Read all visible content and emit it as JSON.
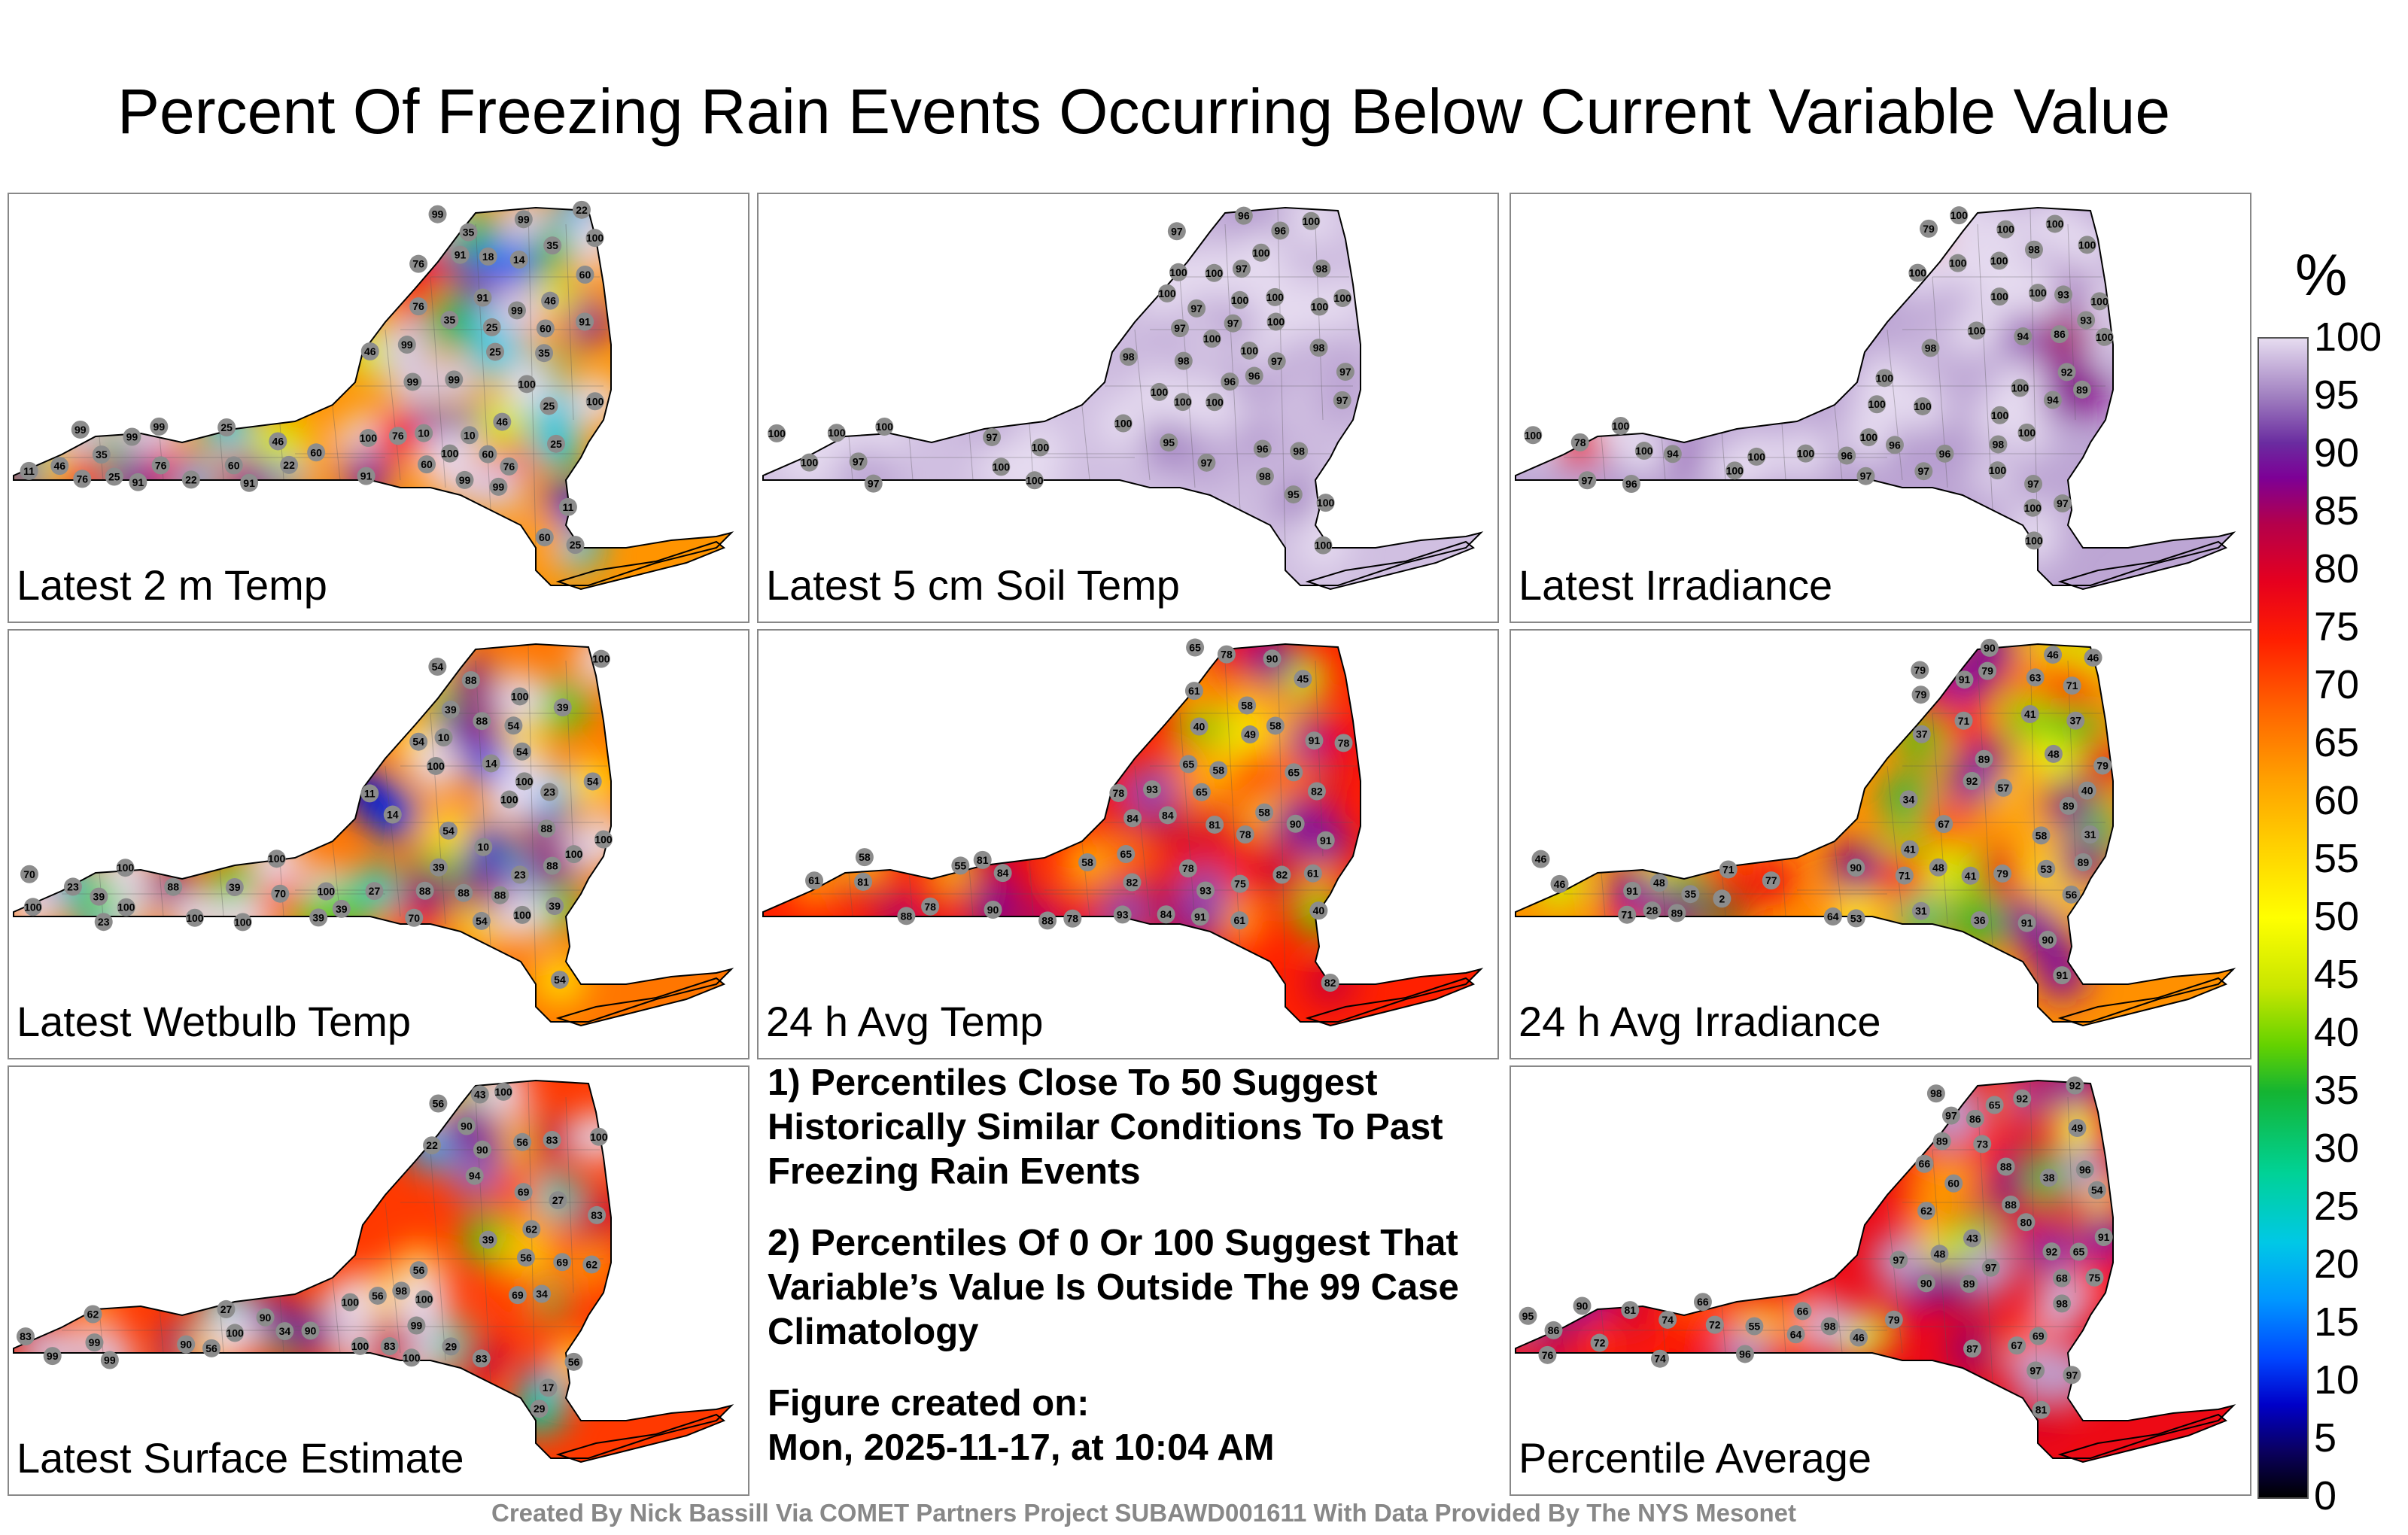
{
  "title": "Percent Of Freezing Rain Events Occurring Below Current Variable Value",
  "chart_data": {
    "type": "heatmap",
    "unit_label": "%",
    "value_range": [
      0,
      100
    ],
    "colorbar_ticks": [
      "0",
      "5",
      "10",
      "15",
      "20",
      "25",
      "30",
      "35",
      "40",
      "45",
      "50",
      "55",
      "60",
      "65",
      "70",
      "75",
      "80",
      "85",
      "90",
      "95",
      "100"
    ],
    "panels": [
      {
        "label": "Latest 2 m Temp",
        "values": [
          "46",
          "22",
          "76",
          "25",
          "60",
          "76",
          "25",
          "10",
          "10",
          "91",
          "91",
          "11",
          "60",
          "46",
          "14",
          "18",
          "11",
          "22",
          "99",
          "25",
          "35",
          "60",
          "100",
          "99",
          "99",
          "99",
          "76",
          "25",
          "46",
          "35",
          "99",
          "99",
          "99",
          "60",
          "25",
          "60",
          "35",
          "76",
          "60",
          "46",
          "100",
          "46",
          "60",
          "91",
          "35",
          "35",
          "91",
          "25",
          "99",
          "91",
          "25",
          "22",
          "76",
          "91",
          "100",
          "99",
          "99",
          "100",
          "100",
          "99",
          "76"
        ]
      },
      {
        "label": "Latest 5 cm Soil Temp",
        "values": [
          "97",
          "97",
          "97",
          "96",
          "96",
          "96",
          "100",
          "97",
          "97",
          "96",
          "95",
          "100",
          "100",
          "100",
          "100",
          "98",
          "98",
          "97",
          "97",
          "97",
          "95",
          "98",
          "100",
          "100",
          "100",
          "96",
          "97",
          "100",
          "100",
          "98",
          "100",
          "100",
          "100",
          "97",
          "98",
          "97",
          "100",
          "100",
          "98",
          "100",
          "100",
          "100",
          "100",
          "100",
          "100",
          "100",
          "100",
          "97",
          "100",
          "100"
        ]
      },
      {
        "label": "Latest Irradiance",
        "values": [
          "97",
          "96",
          "100",
          "100",
          "94",
          "98",
          "100",
          "94",
          "96",
          "97",
          "79",
          "93",
          "78",
          "92",
          "100",
          "97",
          "100",
          "96",
          "97",
          "100",
          "100",
          "98",
          "100",
          "89",
          "86",
          "100",
          "100",
          "100",
          "98",
          "97",
          "100",
          "93",
          "100",
          "94",
          "100",
          "100",
          "96",
          "100",
          "100",
          "100",
          "100",
          "100",
          "100",
          "100",
          "100",
          "100",
          "100",
          "100",
          "100",
          "100"
        ]
      },
      {
        "label": "Latest Wetbulb Temp",
        "values": [
          "54",
          "23",
          "88",
          "27",
          "88",
          "39",
          "10",
          "10",
          "88",
          "54",
          "14",
          "11",
          "14",
          "54",
          "39",
          "23",
          "23",
          "100",
          "100",
          "39",
          "23",
          "70",
          "70",
          "100",
          "54",
          "39",
          "39",
          "88",
          "100",
          "70",
          "39",
          "54",
          "54",
          "54",
          "39",
          "39",
          "88",
          "88",
          "100",
          "100",
          "88",
          "88",
          "54",
          "100",
          "100",
          "100",
          "100",
          "100",
          "100",
          "100",
          "100",
          "100"
        ]
      },
      {
        "label": "24 h Avg Temp",
        "values": [
          "65",
          "58",
          "78",
          "58",
          "75",
          "40",
          "40",
          "81",
          "49",
          "45",
          "65",
          "61",
          "55",
          "82",
          "88",
          "88",
          "82",
          "82",
          "81",
          "84",
          "84",
          "78",
          "84",
          "61",
          "58",
          "78",
          "65",
          "84",
          "61",
          "61",
          "58",
          "65",
          "78",
          "58",
          "58",
          "78",
          "65",
          "82",
          "81",
          "91",
          "90",
          "90",
          "91",
          "78",
          "78",
          "90",
          "91",
          "93",
          "93",
          "93"
        ]
      },
      {
        "label": "24 h Avg Irradiance",
        "values": [
          "46",
          "48",
          "48",
          "34",
          "28",
          "64",
          "40",
          "31",
          "46",
          "53",
          "41",
          "41",
          "37",
          "37",
          "31",
          "2",
          "57",
          "48",
          "79",
          "35",
          "36",
          "41",
          "79",
          "53",
          "79",
          "77",
          "58",
          "46",
          "63",
          "71",
          "89",
          "71",
          "56",
          "71",
          "79",
          "71",
          "67",
          "46",
          "71",
          "89",
          "79",
          "90",
          "89",
          "90",
          "89",
          "91",
          "91",
          "91",
          "92",
          "90",
          "91"
        ]
      },
      {
        "label": "Latest Surface Estimate",
        "values": [
          "56",
          "34",
          "69",
          "22",
          "17",
          "34",
          "90",
          "56",
          "39",
          "27",
          "27",
          "62",
          "99",
          "29",
          "29",
          "100",
          "56",
          "83",
          "99",
          "99",
          "98",
          "83",
          "69",
          "90",
          "43",
          "56",
          "62",
          "94",
          "56",
          "100",
          "90",
          "83",
          "90",
          "56",
          "69",
          "56",
          "83",
          "83",
          "62",
          "90",
          "99",
          "100",
          "100",
          "100",
          "100",
          "100"
        ]
      },
      {
        "label": "Percentile Average",
        "values": [
          "66",
          "55",
          "79",
          "74",
          "54",
          "67",
          "48",
          "43",
          "81",
          "65",
          "38",
          "49",
          "46",
          "69",
          "92",
          "88",
          "88",
          "89",
          "90",
          "95",
          "75",
          "76",
          "91",
          "80",
          "72",
          "65",
          "68",
          "86",
          "90",
          "66",
          "74",
          "62",
          "92",
          "73",
          "72",
          "66",
          "64",
          "97",
          "81",
          "89",
          "86",
          "60",
          "92",
          "96",
          "97",
          "87",
          "97",
          "97",
          "96",
          "98",
          "98",
          "98",
          "97"
        ]
      }
    ]
  },
  "notes": {
    "note1": "1) Percentiles Close To 50 Suggest Historically Similar Conditions To Past Freezing Rain Events",
    "note2": "2) Percentiles Of 0 Or 100 Suggest That Variable’s Value Is Outside The 99 Case Climatology",
    "created_label": "Figure created on:",
    "created_value": "Mon, 2025-11-17, at 10:04 AM"
  },
  "credit": "Created By Nick Bassill Via COMET Partners Project SUBAWD001611 With Data Provided By The NYS Mesonet"
}
